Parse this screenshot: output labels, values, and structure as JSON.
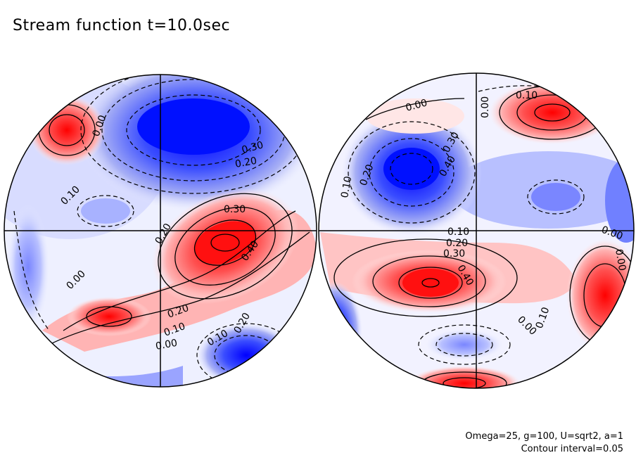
{
  "title": "Stream function t=10.0sec",
  "params_line": "Omega=25, g=100, U=sqrt2, a=1",
  "contour_line": "Contour interval=0.05",
  "colors": {
    "positive": "#ff0000",
    "negative": "#0000ff",
    "background": "#ffffff",
    "outline": "#000000"
  },
  "left_labels": [
    "0.00",
    "0.30",
    "0.20",
    "0.10",
    "0.30",
    "0.20",
    "0.40",
    "0.00",
    "0.20",
    "0.10",
    "0.00",
    "0.10",
    "0.20"
  ],
  "right_labels": [
    "0.00",
    "0.10",
    "0.00",
    "0.30",
    "0.20",
    "0.40",
    "0.10",
    "0.10",
    "0.20",
    "0.30",
    "0.40",
    "0.00",
    "0.00",
    "0.10",
    "0.00"
  ]
}
